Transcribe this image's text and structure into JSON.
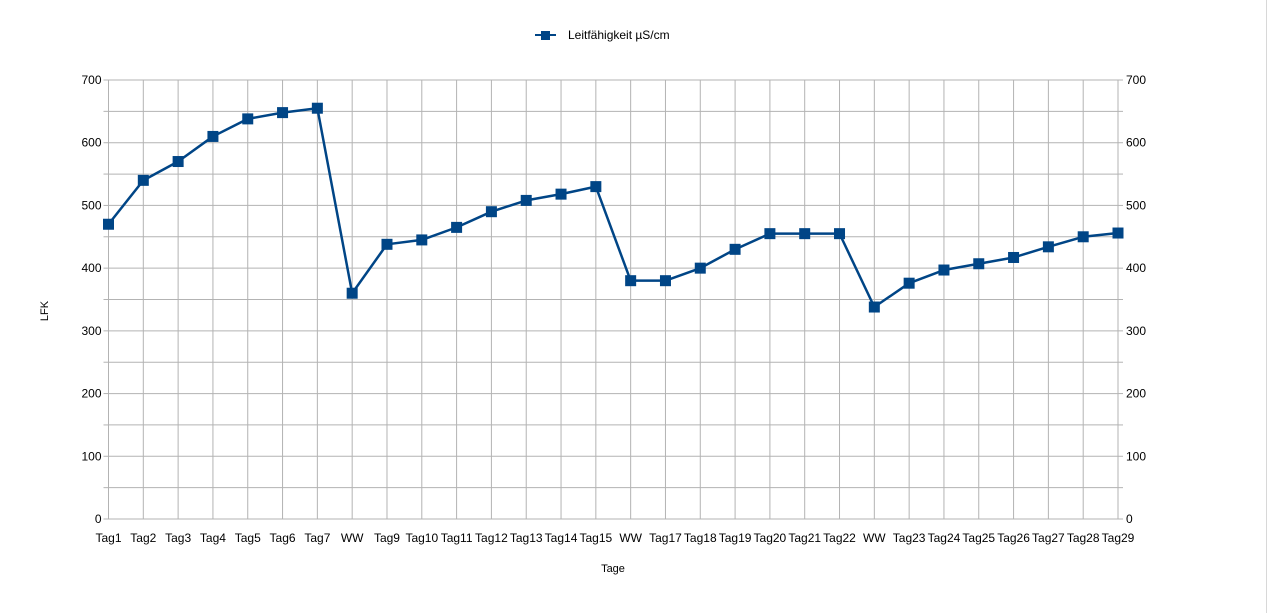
{
  "chart_data": {
    "type": "line",
    "categories": [
      "Tag1",
      "Tag2",
      "Tag3",
      "Tag4",
      "Tag5",
      "Tag6",
      "Tag7",
      "WW",
      "Tag9",
      "Tag10",
      "Tag11",
      "Tag12",
      "Tag13",
      "Tag14",
      "Tag15",
      "WW",
      "Tag17",
      "Tag18",
      "Tag19",
      "Tag20",
      "Tag21",
      "Tag22",
      "WW",
      "Tag23",
      "Tag24",
      "Tag25",
      "Tag26",
      "Tag27",
      "Tag28",
      "Tag29"
    ],
    "series": [
      {
        "name": "Leitfähigkeit µS/cm",
        "values": [
          470,
          540,
          570,
          610,
          638,
          648,
          655,
          360,
          438,
          445,
          465,
          490,
          508,
          518,
          530,
          380,
          380,
          400,
          430,
          455,
          455,
          455,
          338,
          376,
          397,
          407,
          417,
          434,
          450,
          456
        ]
      }
    ],
    "title": "",
    "xlabel": "Tage",
    "ylabel": "LFK",
    "ylim": [
      0,
      700
    ],
    "yticks": [
      0,
      100,
      200,
      300,
      400,
      500,
      600,
      700
    ],
    "ytick_labels": [
      "0",
      "100",
      "200",
      "300",
      "400",
      "500",
      "600",
      "700"
    ],
    "secondary_yaxis": true,
    "grid": true,
    "legend_position": "top-center",
    "series_color": "#004586",
    "grid_color": "#b3b3b3"
  }
}
